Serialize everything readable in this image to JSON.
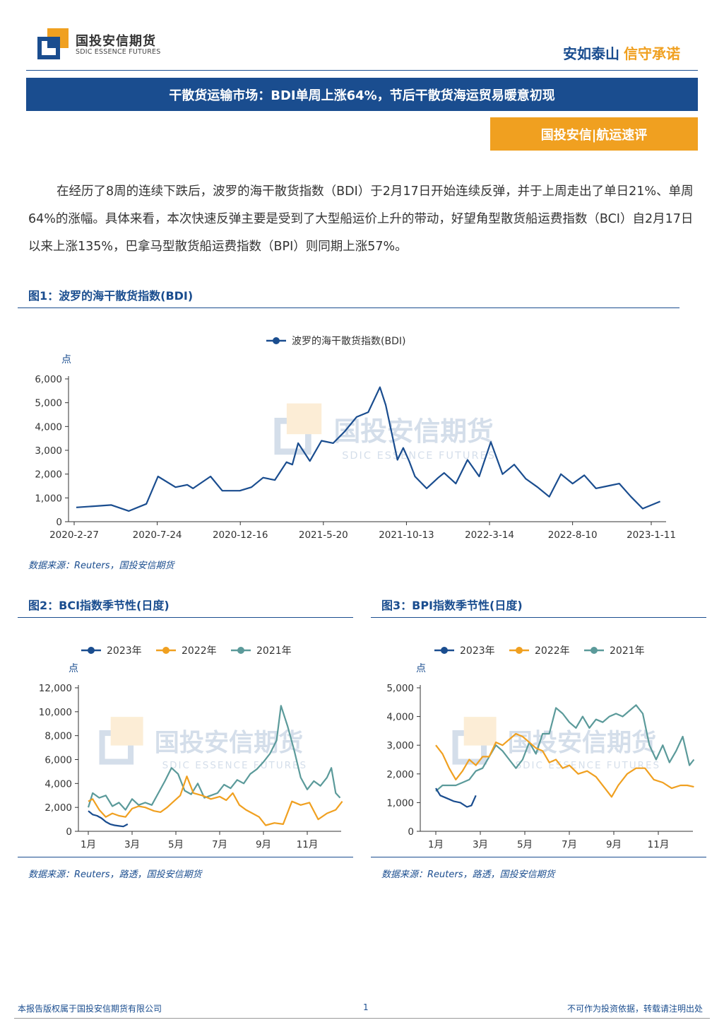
{
  "header": {
    "logo_cn": "国投安信期货",
    "logo_en": "SDIC ESSENCE FUTURES",
    "slogan_a": "安如泰山",
    "slogan_b": "信守承诺",
    "brand_color": "#1a4d8f",
    "accent_color": "#f0a020"
  },
  "title": "干散货运输市场：BDI单周上涨64%，节后干散货海运贸易暖意初现",
  "tag": "国投安信|航运速评",
  "paragraph": "在经历了8周的连续下跌后，波罗的海干散货指数（BDI）于2月17日开始连续反弹，并于上周走出了单日21%、单周64%的涨幅。具体来看，本次快速反弹主要是受到了大型船运价上升的带动，好望角型散货船运费指数（BCI）自2月17日以来上涨135%，巴拿马型散货船运费指数（BPI）则同期上涨57%。",
  "watermark": {
    "cn": "国投安信期货",
    "en": "SDIC ESSENCE FUTURES"
  },
  "figures": {
    "fig1": {
      "title": "图1：波罗的海干散货指数(BDI)",
      "source": "数据来源：Reuters，国投安信期货"
    },
    "fig2": {
      "title": "图2：BCI指数季节性(日度)",
      "source": "数据来源：Reuters，路透，国投安信期货"
    },
    "fig3": {
      "title": "图3：BPI指数季节性(日度)",
      "source": "数据来源：Reuters，路透，国投安信期货"
    }
  },
  "footer": {
    "left": "本报告版权属于国投安信期货有限公司",
    "page": "1",
    "right": "不可作为投资依据，转载请注明出处"
  },
  "chart_data": [
    {
      "id": "bdi",
      "type": "line",
      "title": "",
      "ylabel": "点",
      "ylim": [
        0,
        6000
      ],
      "yticks": [
        0,
        1000,
        2000,
        3000,
        4000,
        5000,
        6000
      ],
      "ytick_labels": [
        "0",
        "1,000",
        "2,000",
        "3,000",
        "4,000",
        "5,000",
        "6,000"
      ],
      "x_tick_labels": [
        "2020-2-27",
        "2020-7-24",
        "2020-12-16",
        "2021-5-20",
        "2021-10-13",
        "2022-3-14",
        "2022-8-10",
        "2023-1-11"
      ],
      "legend_position": "top",
      "series": [
        {
          "name": "波罗的海干散货指数(BDI)",
          "color": "#1a4d8f",
          "t": [
            0,
            0.03,
            0.06,
            0.09,
            0.12,
            0.14,
            0.17,
            0.19,
            0.2,
            0.23,
            0.25,
            0.28,
            0.3,
            0.32,
            0.34,
            0.36,
            0.37,
            0.38,
            0.4,
            0.42,
            0.44,
            0.46,
            0.48,
            0.5,
            0.52,
            0.53,
            0.55,
            0.56,
            0.57,
            0.58,
            0.6,
            0.62,
            0.63,
            0.65,
            0.67,
            0.69,
            0.71,
            0.73,
            0.75,
            0.77,
            0.79,
            0.81,
            0.83,
            0.85,
            0.87,
            0.89,
            0.91,
            0.93,
            0.95,
            0.97,
            1.0
          ],
          "values": [
            600,
            650,
            700,
            450,
            750,
            1900,
            1450,
            1550,
            1400,
            1900,
            1300,
            1300,
            1450,
            1850,
            1750,
            2500,
            2400,
            3300,
            2550,
            3400,
            3300,
            3800,
            4400,
            4600,
            5650,
            4900,
            2600,
            3100,
            2550,
            1900,
            1400,
            1850,
            2050,
            1600,
            2600,
            1900,
            3350,
            2000,
            2400,
            1800,
            1450,
            1050,
            2000,
            1600,
            1950,
            1400,
            1500,
            1600,
            1050,
            550,
            850
          ]
        }
      ]
    },
    {
      "id": "bci",
      "type": "line",
      "title": "",
      "ylabel": "点",
      "ylim": [
        0,
        12000
      ],
      "yticks": [
        0,
        2000,
        4000,
        6000,
        8000,
        10000,
        12000
      ],
      "ytick_labels": [
        "0",
        "2,000",
        "4,000",
        "6,000",
        "8,000",
        "10,000",
        "12,000"
      ],
      "x_tick_labels": [
        "1月",
        "3月",
        "5月",
        "7月",
        "9月",
        "11月"
      ],
      "x_tick_months": [
        1,
        3,
        5,
        7,
        9,
        11
      ],
      "legend_position": "top",
      "series": [
        {
          "name": "2023年",
          "color": "#1a4d8f",
          "x": [
            1,
            1.2,
            1.4,
            1.6,
            1.8,
            2.0,
            2.2,
            2.4,
            2.6,
            2.8
          ],
          "values": [
            1700,
            1400,
            1300,
            1100,
            800,
            600,
            500,
            450,
            400,
            600
          ]
        },
        {
          "name": "2022年",
          "color": "#f0a020",
          "x": [
            1,
            1.2,
            1.5,
            1.8,
            2.1,
            2.4,
            2.7,
            3.0,
            3.3,
            3.6,
            4.0,
            4.3,
            4.6,
            4.9,
            5.2,
            5.5,
            5.8,
            6.2,
            6.6,
            7.0,
            7.3,
            7.6,
            7.9,
            8.2,
            8.5,
            8.8,
            9.1,
            9.5,
            9.9,
            10.3,
            10.7,
            11.1,
            11.5,
            11.9,
            12.3,
            12.6
          ],
          "values": [
            2500,
            2700,
            1800,
            1200,
            1500,
            1300,
            1200,
            1900,
            2100,
            2000,
            1700,
            1600,
            2000,
            2500,
            3000,
            4600,
            3200,
            3000,
            2700,
            2900,
            2600,
            3200,
            2200,
            1800,
            1500,
            1200,
            500,
            700,
            600,
            2500,
            2200,
            2400,
            1000,
            1500,
            1800,
            2500
          ]
        },
        {
          "name": "2021年",
          "color": "#5b9a9a",
          "x": [
            1,
            1.2,
            1.5,
            1.8,
            2.1,
            2.4,
            2.7,
            3.0,
            3.3,
            3.6,
            3.9,
            4.2,
            4.5,
            4.8,
            5.1,
            5.4,
            5.7,
            6.0,
            6.3,
            6.6,
            6.9,
            7.2,
            7.5,
            7.8,
            8.1,
            8.4,
            8.7,
            9.0,
            9.3,
            9.6,
            9.8,
            10.1,
            10.4,
            10.7,
            11.0,
            11.3,
            11.6,
            11.9,
            12.1,
            12.3,
            12.5
          ],
          "values": [
            2000,
            3200,
            2800,
            3000,
            2100,
            2400,
            1800,
            2700,
            2200,
            2400,
            2200,
            3200,
            4200,
            5300,
            4800,
            3400,
            3100,
            4000,
            2800,
            3000,
            3200,
            3900,
            3600,
            4300,
            4000,
            4800,
            5200,
            5800,
            6500,
            7600,
            10500,
            8800,
            6800,
            4500,
            3500,
            4200,
            3800,
            4500,
            5300,
            3200,
            2800
          ]
        }
      ]
    },
    {
      "id": "bpi",
      "type": "line",
      "title": "",
      "ylabel": "点",
      "ylim": [
        0,
        5000
      ],
      "yticks": [
        0,
        1000,
        2000,
        3000,
        4000,
        5000
      ],
      "ytick_labels": [
        "0",
        "1,000",
        "2,000",
        "3,000",
        "4,000",
        "5,000"
      ],
      "x_tick_labels": [
        "1月",
        "3月",
        "5月",
        "7月",
        "9月",
        "11月"
      ],
      "x_tick_months": [
        1,
        3,
        5,
        7,
        9,
        11
      ],
      "legend_position": "top",
      "series": [
        {
          "name": "2023年",
          "color": "#1a4d8f",
          "x": [
            1,
            1.2,
            1.5,
            1.8,
            2.1,
            2.4,
            2.6,
            2.8
          ],
          "values": [
            1500,
            1250,
            1150,
            1050,
            1000,
            850,
            900,
            1250
          ]
        },
        {
          "name": "2022年",
          "color": "#f0a020",
          "x": [
            1,
            1.3,
            1.6,
            1.9,
            2.2,
            2.5,
            2.8,
            3.1,
            3.4,
            3.7,
            4.0,
            4.3,
            4.6,
            4.9,
            5.2,
            5.5,
            5.8,
            6.1,
            6.4,
            6.7,
            7.0,
            7.4,
            7.8,
            8.2,
            8.6,
            8.9,
            9.2,
            9.6,
            10.0,
            10.4,
            10.8,
            11.2,
            11.6,
            12.0,
            12.3,
            12.6
          ],
          "values": [
            3000,
            2700,
            2200,
            1800,
            2100,
            2500,
            2300,
            2600,
            2600,
            3100,
            3000,
            3200,
            3400,
            3300,
            3100,
            2900,
            2800,
            2400,
            2500,
            2200,
            2300,
            2000,
            2100,
            1900,
            1500,
            1200,
            1600,
            2000,
            2200,
            2200,
            1800,
            1700,
            1500,
            1600,
            1600,
            1550
          ]
        },
        {
          "name": "2021年",
          "color": "#5b9a9a",
          "x": [
            1,
            1.3,
            1.6,
            1.9,
            2.2,
            2.5,
            2.8,
            3.1,
            3.4,
            3.7,
            4.0,
            4.3,
            4.6,
            4.9,
            5.2,
            5.5,
            5.8,
            6.1,
            6.4,
            6.7,
            7.0,
            7.3,
            7.6,
            7.9,
            8.2,
            8.5,
            8.8,
            9.1,
            9.4,
            9.7,
            10.0,
            10.3,
            10.6,
            10.9,
            11.2,
            11.5,
            11.8,
            12.1,
            12.4,
            12.6
          ],
          "values": [
            1400,
            1600,
            1600,
            1600,
            1700,
            1800,
            2100,
            2200,
            2600,
            3000,
            2800,
            2500,
            2200,
            2500,
            3100,
            2700,
            3400,
            3400,
            4300,
            4100,
            3800,
            3600,
            4000,
            3600,
            3900,
            3800,
            4000,
            4100,
            4000,
            4200,
            4400,
            4100,
            3000,
            2500,
            3000,
            2400,
            2800,
            3300,
            2300,
            2500
          ]
        }
      ]
    }
  ]
}
